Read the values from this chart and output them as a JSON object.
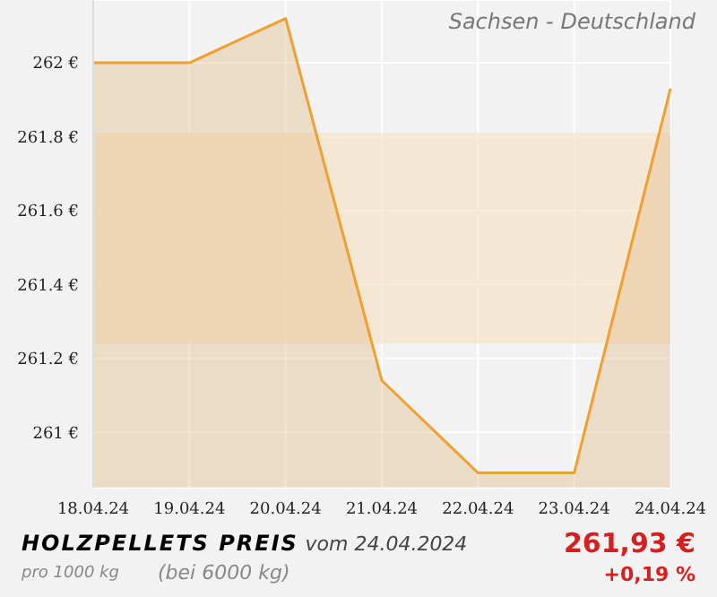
{
  "chart_data": {
    "type": "area",
    "title": "HOLZPELLETS PREIS",
    "subtitle": "Sachsen - Deutschland",
    "annotations": [
      "vom 24.04.2024",
      "pro 1000 kg",
      "(bei 6000 kg)",
      "261,93 €",
      "+0,19 %"
    ],
    "categories": [
      "18.04.24",
      "19.04.24",
      "20.04.24",
      "21.04.24",
      "22.04.24",
      "23.04.24",
      "24.04.24"
    ],
    "series": [
      {
        "color": "#f0a030",
        "values": [
          262.0,
          262.0,
          262.12,
          261.14,
          260.89,
          260.89,
          261.93
        ]
      }
    ],
    "ylim": [
      260.85,
      262.17
    ],
    "yticks": [
      {
        "value": 261,
        "label": "261 €"
      },
      {
        "value": 261.2,
        "label": "261.2 €"
      },
      {
        "value": 261.4,
        "label": "261.4 €"
      },
      {
        "value": 261.6,
        "label": "261.6 €"
      },
      {
        "value": 261.8,
        "label": "261.8 €"
      },
      {
        "value": 262,
        "label": "262 €"
      }
    ],
    "bands": [
      {
        "axis": "y",
        "from": 261.24,
        "to": 261.81,
        "color": "#f5e3c8"
      }
    ],
    "grid": true,
    "legend": false,
    "marker": "none"
  }
}
